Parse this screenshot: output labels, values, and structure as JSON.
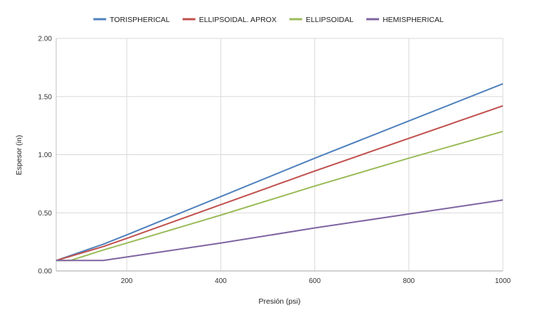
{
  "chart_data": {
    "type": "line",
    "title": "",
    "xlabel": "Presión (psi)",
    "ylabel": "Espesor (in)",
    "xlim": [
      50,
      1000
    ],
    "ylim": [
      0,
      2
    ],
    "xticks": [
      200,
      400,
      600,
      800,
      1000
    ],
    "xtick_labels": [
      "200",
      "400",
      "600",
      "800",
      "1000"
    ],
    "yticks": [
      0,
      0.5,
      1,
      1.5,
      2
    ],
    "ytick_labels": [
      "0.00",
      "0.50",
      "1.00",
      "1.50",
      "2.00"
    ],
    "grid": true,
    "legend_position": "top",
    "series": [
      {
        "name": "TORISPHERICAL",
        "color": "#4f81bd",
        "points": [
          [
            50,
            0.09
          ],
          [
            150,
            0.23
          ],
          [
            200,
            0.31
          ],
          [
            400,
            0.64
          ],
          [
            600,
            0.97
          ],
          [
            800,
            1.29
          ],
          [
            1000,
            1.61
          ]
        ]
      },
      {
        "name": "ELLIPSOIDAL. APROX",
        "color": "#c0504d",
        "points": [
          [
            50,
            0.09
          ],
          [
            150,
            0.21
          ],
          [
            200,
            0.28
          ],
          [
            400,
            0.57
          ],
          [
            600,
            0.86
          ],
          [
            800,
            1.14
          ],
          [
            1000,
            1.42
          ]
        ]
      },
      {
        "name": "ELLIPSOIDAL",
        "color": "#9bbb59",
        "points": [
          [
            50,
            0.09
          ],
          [
            80,
            0.09
          ],
          [
            150,
            0.18
          ],
          [
            200,
            0.24
          ],
          [
            400,
            0.48
          ],
          [
            600,
            0.73
          ],
          [
            800,
            0.97
          ],
          [
            1000,
            1.2
          ]
        ]
      },
      {
        "name": "HEMISPHERICAL",
        "color": "#8064a2",
        "points": [
          [
            50,
            0.09
          ],
          [
            150,
            0.09
          ],
          [
            200,
            0.12
          ],
          [
            400,
            0.24
          ],
          [
            600,
            0.37
          ],
          [
            800,
            0.49
          ],
          [
            1000,
            0.61
          ]
        ]
      }
    ]
  }
}
